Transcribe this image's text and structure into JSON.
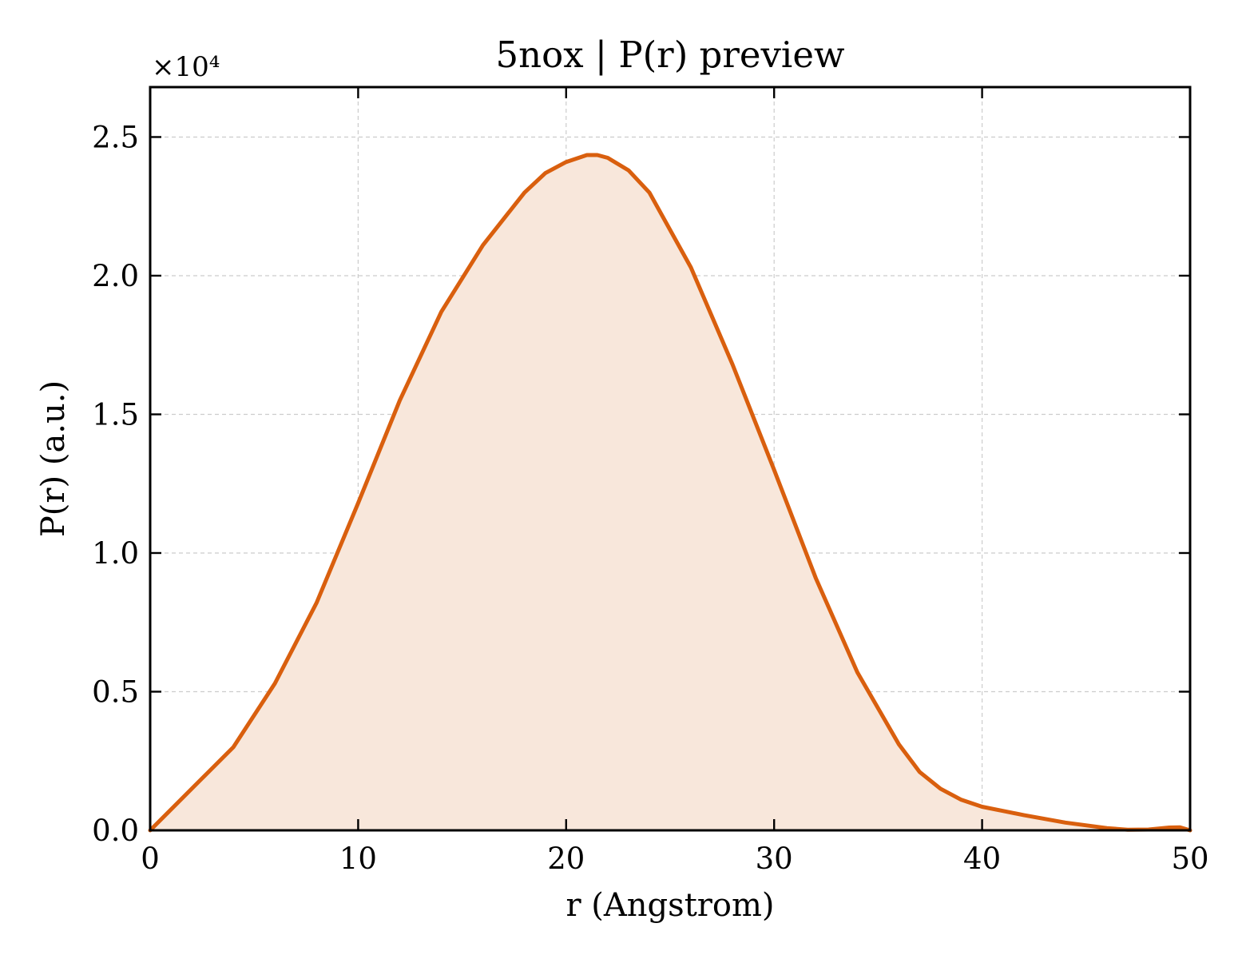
{
  "chart_data": {
    "type": "area",
    "title": "5nox | P(r) preview",
    "xlabel": "r (Angstrom)",
    "ylabel": "P(r) (a.u.)",
    "y_multiplier_label": "×10⁴",
    "xlim": [
      0,
      50
    ],
    "ylim": [
      0,
      26800
    ],
    "xticks": [
      0,
      10,
      20,
      30,
      40,
      50
    ],
    "xtick_labels": [
      "0",
      "10",
      "20",
      "30",
      "40",
      "50"
    ],
    "yticks": [
      0,
      5000,
      10000,
      15000,
      20000,
      25000
    ],
    "ytick_labels": [
      "0.0",
      "0.5",
      "1.0",
      "1.5",
      "2.0",
      "2.5"
    ],
    "grid": true,
    "line_color": "#d95f0e",
    "fill_color": "#f8e7db",
    "series": [
      {
        "x": [
          0,
          2,
          4,
          6,
          8,
          10,
          12,
          14,
          16,
          18,
          19,
          20,
          21,
          21.5,
          22,
          23,
          24,
          26,
          28,
          30,
          32,
          34,
          36,
          37,
          38,
          39,
          40,
          41,
          42,
          44,
          46,
          47,
          48,
          49,
          49.5,
          50
        ],
        "y": [
          0,
          1500,
          3000,
          5300,
          8200,
          11800,
          15500,
          18700,
          21100,
          23000,
          23700,
          24100,
          24350,
          24350,
          24250,
          23800,
          23000,
          20300,
          16800,
          13000,
          9100,
          5700,
          3100,
          2100,
          1500,
          1100,
          850,
          700,
          550,
          280,
          80,
          20,
          30,
          100,
          110,
          0
        ]
      }
    ]
  }
}
